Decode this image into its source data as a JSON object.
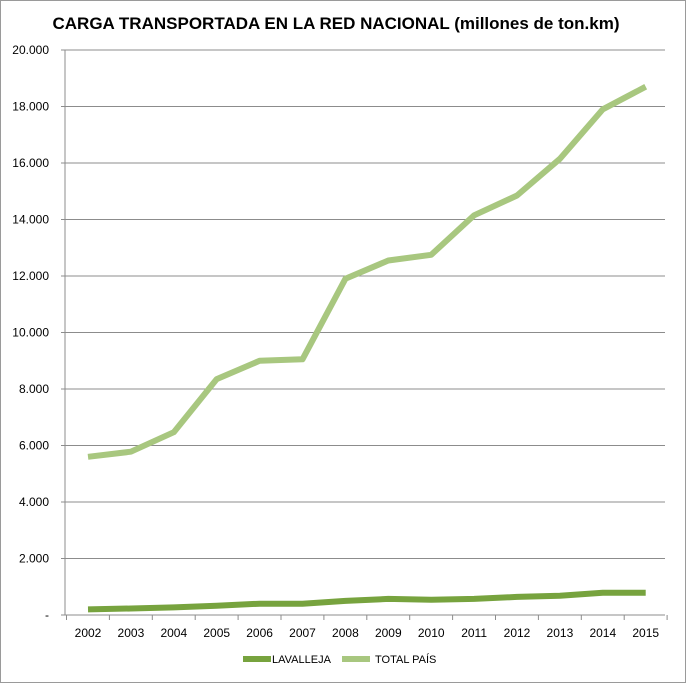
{
  "chart_data": {
    "type": "line",
    "title": "CARGA TRANSPORTADA EN LA RED NACIONAL (millones de ton.km)",
    "x": [
      "2002",
      "2003",
      "2004",
      "2005",
      "2006",
      "2007",
      "2008",
      "2009",
      "2010",
      "2011",
      "2012",
      "2013",
      "2014",
      "2015"
    ],
    "ylim": [
      0,
      20000
    ],
    "y_ticks": [
      0,
      2000,
      4000,
      6000,
      8000,
      10000,
      12000,
      14000,
      16000,
      18000,
      20000
    ],
    "y_tick_labels": [
      "-",
      "2.000",
      "4.000",
      "6.000",
      "8.000",
      "10.000",
      "12.000",
      "14.000",
      "16.000",
      "18.000",
      "20.000"
    ],
    "grid": true,
    "legend_position": "bottom",
    "series": [
      {
        "name": "LAVALLEJA",
        "color": "#77a33e",
        "values": [
          200,
          230,
          270,
          330,
          400,
          400,
          500,
          570,
          540,
          570,
          640,
          680,
          790,
          790
        ]
      },
      {
        "name": "TOTAL PAÍS",
        "color": "#a8c77f",
        "values": [
          5600,
          5780,
          6470,
          8350,
          9000,
          9050,
          11900,
          12550,
          12750,
          14150,
          14850,
          16150,
          17900,
          18700
        ]
      }
    ]
  }
}
